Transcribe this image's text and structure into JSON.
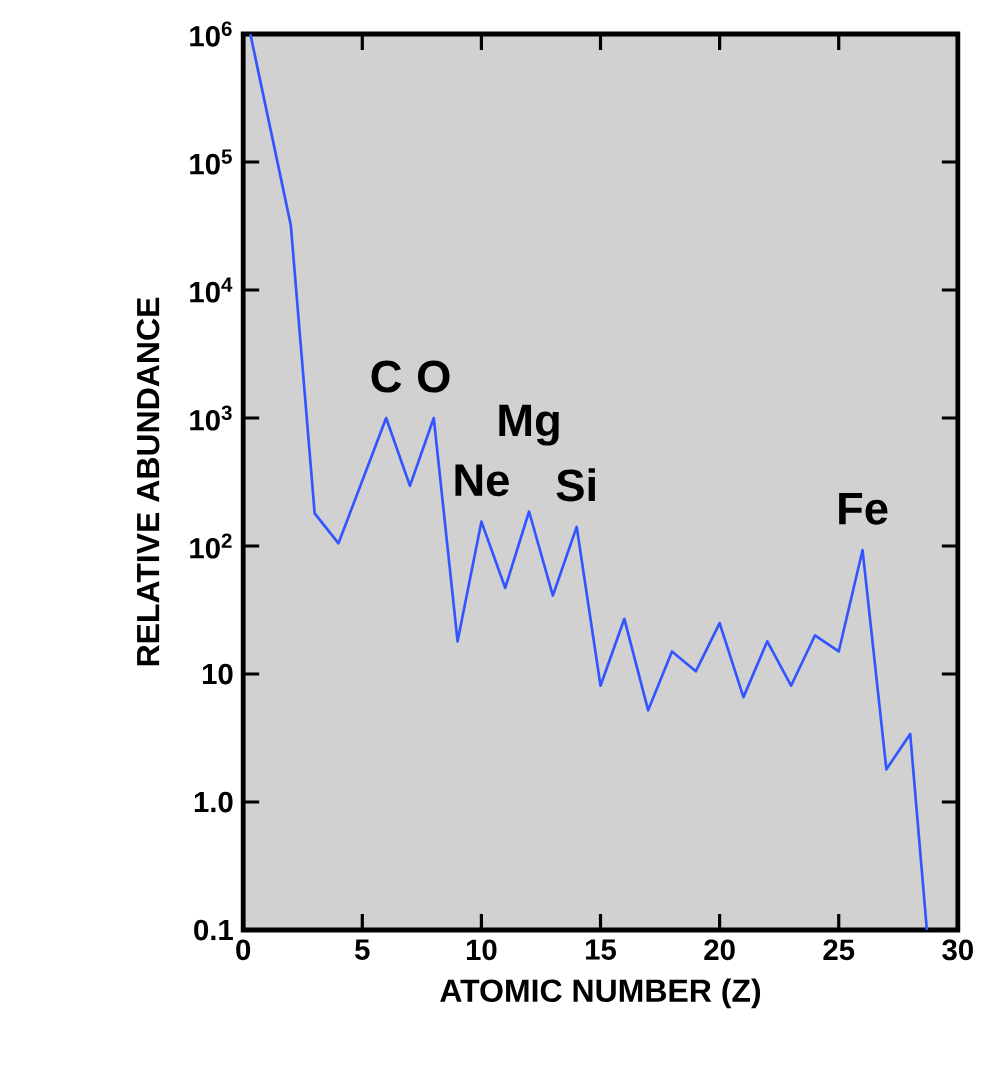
{
  "chart_data": {
    "type": "line",
    "xlabel": "ATOMIC NUMBER (Z)",
    "ylabel": "RELATIVE ABUNDANCE",
    "log": "y",
    "color": "#3355ff",
    "x": [
      0.3,
      2,
      3,
      4,
      6,
      7,
      8,
      9,
      10,
      11,
      12,
      13,
      14,
      15,
      16,
      17,
      18,
      19,
      20,
      21,
      22,
      23,
      24,
      25,
      26,
      27,
      28,
      28.7
    ],
    "values": [
      1000000,
      32000,
      180,
      105,
      1000,
      295,
      1000,
      18,
      155,
      47,
      186,
      41,
      141,
      8.1,
      27,
      5.2,
      15,
      10.5,
      25,
      6.6,
      18,
      8.1,
      20,
      15,
      93,
      1.8,
      3.4,
      0.1
    ],
    "xlim": [
      0,
      30
    ],
    "ylim": [
      0.1,
      1000000
    ],
    "xticks": [
      0,
      5,
      10,
      15,
      20,
      25,
      30
    ],
    "yticks": [
      0.1,
      {
        "value": 1,
        "label": "1.0"
      },
      10,
      {
        "value": 100,
        "label": "10$^{2}$"
      },
      {
        "value": 1000,
        "label": "10$^{3}$"
      },
      {
        "value": 10000,
        "label": "10$^{4}$"
      },
      {
        "value": 100000,
        "label": "10$^{5}$"
      },
      {
        "value": 1000000,
        "label": "10$^{6}$"
      }
    ],
    "grid": false,
    "marker": "none",
    "line_style": "solid",
    "annotations": [
      {
        "text": "C",
        "x": 6,
        "y": 1000
      },
      {
        "text": "O",
        "x": 8,
        "y": 1000
      },
      {
        "text": "Mg",
        "x": 12,
        "y": 186
      },
      {
        "text": "Ne",
        "x": 10,
        "y": 155
      },
      {
        "text": "Si",
        "x": 14,
        "y": 141
      },
      {
        "text": "Fe",
        "x": 26,
        "y": 93
      }
    ]
  }
}
